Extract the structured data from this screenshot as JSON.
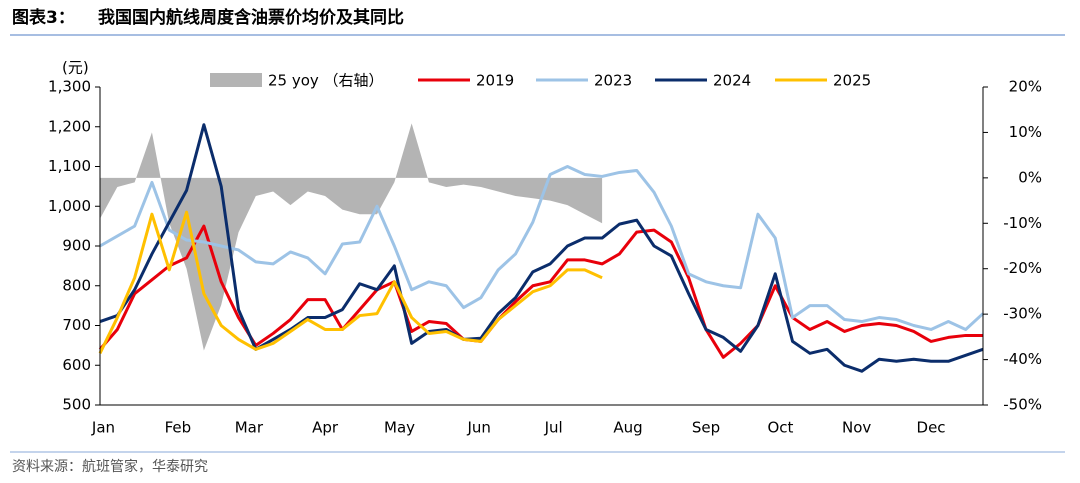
{
  "header": {
    "label": "图表3：",
    "title": "我国国内航线周度含油票价均价及其同比"
  },
  "source": "资料来源：航班管家，华泰研究",
  "chart_data": {
    "type": "line",
    "y_label": "(元)",
    "x": [
      0,
      1,
      2,
      3,
      4,
      5,
      6,
      7,
      8,
      9,
      10,
      11,
      12,
      13,
      14,
      15,
      16,
      17,
      18,
      19,
      20,
      21,
      22,
      23,
      24,
      25,
      26,
      27,
      28,
      29,
      30,
      31,
      32,
      33,
      34,
      35,
      36,
      37,
      38,
      39,
      40,
      41,
      42,
      43,
      44,
      45,
      46,
      47,
      48,
      49,
      50,
      51
    ],
    "xlim": [
      0,
      51
    ],
    "xticks": [
      {
        "value": 0.2,
        "label": "Jan"
      },
      {
        "value": 4.5,
        "label": "Feb"
      },
      {
        "value": 8.6,
        "label": "Mar"
      },
      {
        "value": 13,
        "label": "Apr"
      },
      {
        "value": 17.3,
        "label": "May"
      },
      {
        "value": 21.9,
        "label": "Jun"
      },
      {
        "value": 26.2,
        "label": "Jul"
      },
      {
        "value": 30.5,
        "label": "Aug"
      },
      {
        "value": 35,
        "label": "Sep"
      },
      {
        "value": 39.3,
        "label": "Oct"
      },
      {
        "value": 43.7,
        "label": "Nov"
      },
      {
        "value": 48,
        "label": "Dec"
      }
    ],
    "ylim": [
      500,
      1300
    ],
    "yticks": [
      500,
      600,
      700,
      800,
      900,
      {
        "value": 1000,
        "label": "1,000"
      },
      {
        "value": 1100,
        "label": "1,100"
      },
      {
        "value": 1200,
        "label": "1,200"
      },
      {
        "value": 1300,
        "label": "1,300"
      }
    ],
    "y2lim": [
      -50,
      20
    ],
    "y2ticks": [
      {
        "value": -50,
        "label": "-50%"
      },
      {
        "value": -40,
        "label": "-40%"
      },
      {
        "value": -30,
        "label": "-30%"
      },
      {
        "value": -20,
        "label": "-20%"
      },
      {
        "value": -10,
        "label": "-10%"
      },
      {
        "value": 0,
        "label": "0%"
      },
      {
        "value": 10,
        "label": "10%"
      },
      {
        "value": 20,
        "label": "20%"
      }
    ],
    "series": [
      {
        "name": "25 yoy （右轴）",
        "type": "area",
        "axis": "y2",
        "color": "#b4b4b4",
        "values": [
          -9,
          -2,
          -1,
          10,
          -10,
          -20,
          -38,
          -28,
          -12,
          -4,
          -3,
          -6,
          -3,
          -4,
          -7,
          -8,
          -8,
          -1,
          12,
          -1,
          -2,
          -1.5,
          -2,
          -3,
          -4,
          -4.5,
          -5,
          -6,
          -8,
          -10,
          null,
          null,
          null,
          null,
          null,
          null,
          null,
          null,
          null,
          null,
          null,
          null,
          null,
          null,
          null,
          null,
          null,
          null,
          null,
          null,
          null,
          null
        ]
      },
      {
        "name": "2019",
        "color": "#e8000b",
        "values": [
          640,
          690,
          780,
          815,
          850,
          870,
          950,
          810,
          720,
          650,
          680,
          715,
          765,
          765,
          690,
          740,
          790,
          810,
          685,
          710,
          705,
          665,
          660,
          715,
          760,
          800,
          810,
          865,
          865,
          855,
          880,
          935,
          940,
          910,
          820,
          690,
          620,
          655,
          700,
          800,
          720,
          690,
          710,
          685,
          700,
          705,
          700,
          685,
          660,
          670,
          675,
          675
        ]
      },
      {
        "name": "2023",
        "color": "#9dc3e6",
        "values": [
          900,
          925,
          950,
          1060,
          940,
          915,
          910,
          900,
          890,
          860,
          855,
          885,
          870,
          830,
          905,
          910,
          1000,
          900,
          790,
          810,
          800,
          745,
          770,
          840,
          880,
          960,
          1080,
          1100,
          1080,
          1075,
          1085,
          1090,
          1035,
          950,
          830,
          810,
          800,
          795,
          980,
          920,
          720,
          750,
          750,
          715,
          710,
          720,
          715,
          700,
          690,
          710,
          690,
          730
        ]
      },
      {
        "name": "2024",
        "color": "#0b2d6b",
        "values": [
          710,
          725,
          790,
          880,
          960,
          1040,
          1205,
          1050,
          740,
          640,
          665,
          690,
          720,
          720,
          740,
          805,
          790,
          850,
          655,
          685,
          690,
          665,
          668,
          730,
          770,
          835,
          855,
          900,
          920,
          920,
          955,
          965,
          900,
          875,
          780,
          690,
          670,
          635,
          700,
          830,
          660,
          630,
          640,
          600,
          585,
          615,
          610,
          615,
          610,
          610,
          625,
          640
        ]
      },
      {
        "name": "2025",
        "color": "#ffc000",
        "values": [
          630,
          720,
          820,
          980,
          840,
          985,
          780,
          700,
          665,
          640,
          655,
          685,
          715,
          690,
          690,
          725,
          730,
          810,
          720,
          680,
          685,
          665,
          660,
          715,
          750,
          785,
          800,
          840,
          840,
          820,
          null,
          null,
          null,
          null,
          null,
          null,
          null,
          null,
          null,
          null,
          null,
          null,
          null,
          null,
          null,
          null,
          null,
          null,
          null,
          null,
          null,
          null
        ]
      }
    ]
  }
}
